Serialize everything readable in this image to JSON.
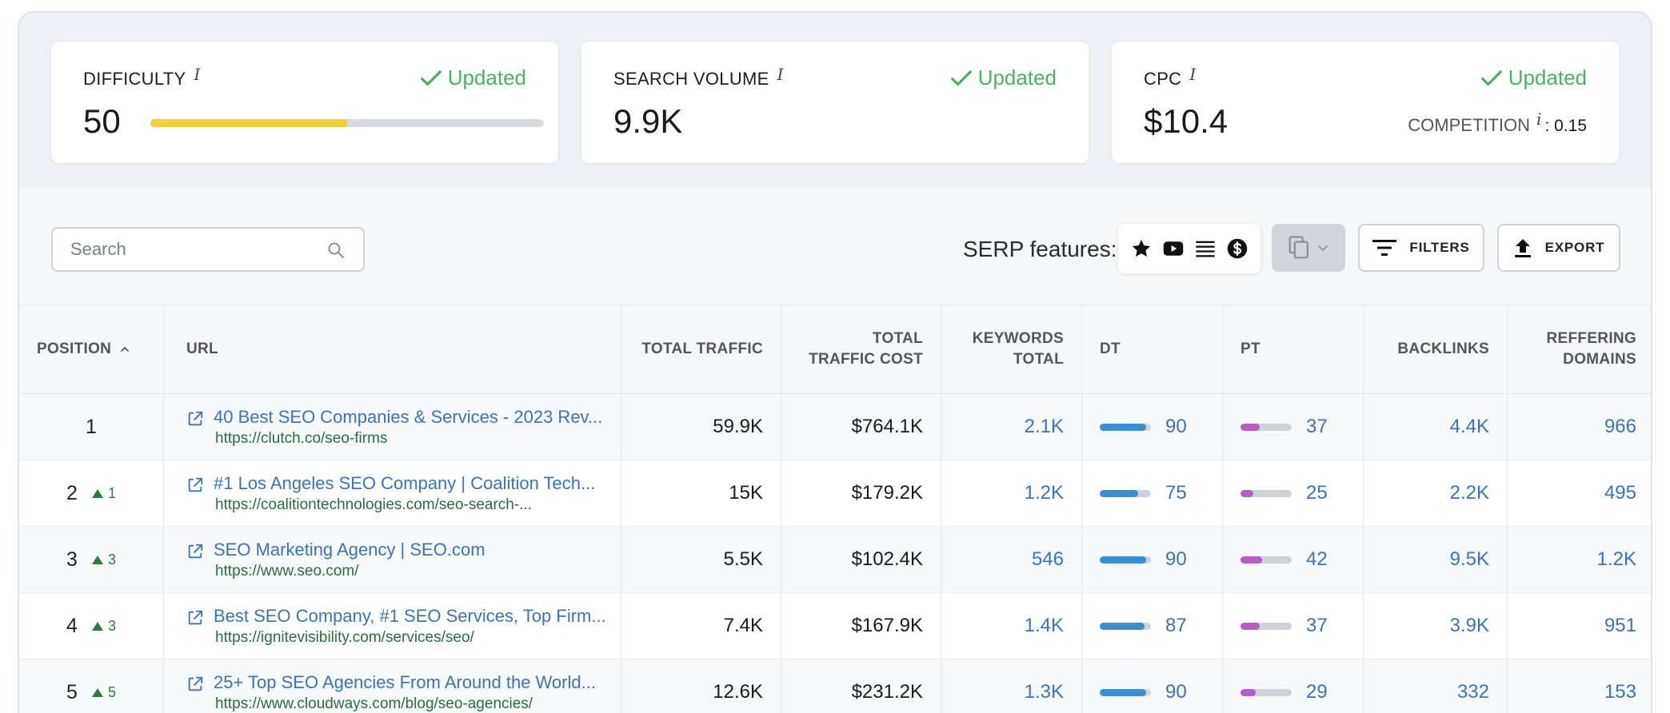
{
  "metrics": {
    "difficulty": {
      "label": "DIFFICULTY",
      "info": "i",
      "status": "Updated",
      "value": "50",
      "level": 0.5
    },
    "search_volume": {
      "label": "SEARCH VOLUME",
      "info": "i",
      "status": "Updated",
      "value": "9.9K"
    },
    "cpc": {
      "label": "CPC",
      "info": "i",
      "status": "Updated",
      "value": "$10.4",
      "competition_label": "COMPETITION",
      "competition_info": "i",
      "competition_value": ": 0.15"
    }
  },
  "toolbar": {
    "search_placeholder": "Search",
    "serp_label": "SERP features:",
    "serp_icons": [
      "star-icon",
      "video-icon",
      "list-icon",
      "dollar-icon"
    ],
    "filters_label": "FILTERS",
    "export_label": "EXPORT"
  },
  "colors": {
    "accent_link": "#3a73b6",
    "updated_green": "#4caf62",
    "difficulty_yellow": "#f2cf3f",
    "dt_blue": "#3a8fd4",
    "pt_purple": "#b45dc7",
    "delta_green": "#2f7d3e"
  },
  "table": {
    "headers": {
      "position": "POSITION",
      "url": "URL",
      "total_traffic": "TOTAL TRAFFIC",
      "total_traffic_cost_1": "TOTAL",
      "total_traffic_cost_2": "TRAFFIC COST",
      "keywords_total_1": "KEYWORDS",
      "keywords_total_2": "TOTAL",
      "dt": "DT",
      "pt": "PT",
      "backlinks": "BACKLINKS",
      "referring_domains_1": "REFFERING",
      "referring_domains_2": "DOMAINS"
    },
    "rows": [
      {
        "position": "1",
        "delta": "",
        "title": "40 Best SEO Companies & Services - 2023 Rev...",
        "url": "https://clutch.co/seo-firms",
        "traffic": "59.9K",
        "cost": "$764.1K",
        "keywords": "2.1K",
        "dt": "90",
        "pt": "37",
        "backlinks": "4.4K",
        "domains": "966"
      },
      {
        "position": "2",
        "delta": "1",
        "title": "#1 Los Angeles SEO Company | Coalition Tech...",
        "url": "https://coalitiontechnologies.com/seo-search-...",
        "traffic": "15K",
        "cost": "$179.2K",
        "keywords": "1.2K",
        "dt": "75",
        "pt": "25",
        "backlinks": "2.2K",
        "domains": "495"
      },
      {
        "position": "3",
        "delta": "3",
        "title": "SEO Marketing Agency | SEO.com",
        "url": "https://www.seo.com/",
        "traffic": "5.5K",
        "cost": "$102.4K",
        "keywords": "546",
        "dt": "90",
        "pt": "42",
        "backlinks": "9.5K",
        "domains": "1.2K"
      },
      {
        "position": "4",
        "delta": "3",
        "title": "Best SEO Company, #1 SEO Services, Top Firm...",
        "url": "https://ignitevisibility.com/services/seo/",
        "traffic": "7.4K",
        "cost": "$167.9K",
        "keywords": "1.4K",
        "dt": "87",
        "pt": "37",
        "backlinks": "3.9K",
        "domains": "951"
      },
      {
        "position": "5",
        "delta": "5",
        "title": "25+ Top SEO Agencies From Around the World...",
        "url": "https://www.cloudways.com/blog/seo-agencies/",
        "traffic": "12.6K",
        "cost": "$231.2K",
        "keywords": "1.3K",
        "dt": "90",
        "pt": "29",
        "backlinks": "332",
        "domains": "153"
      }
    ]
  }
}
